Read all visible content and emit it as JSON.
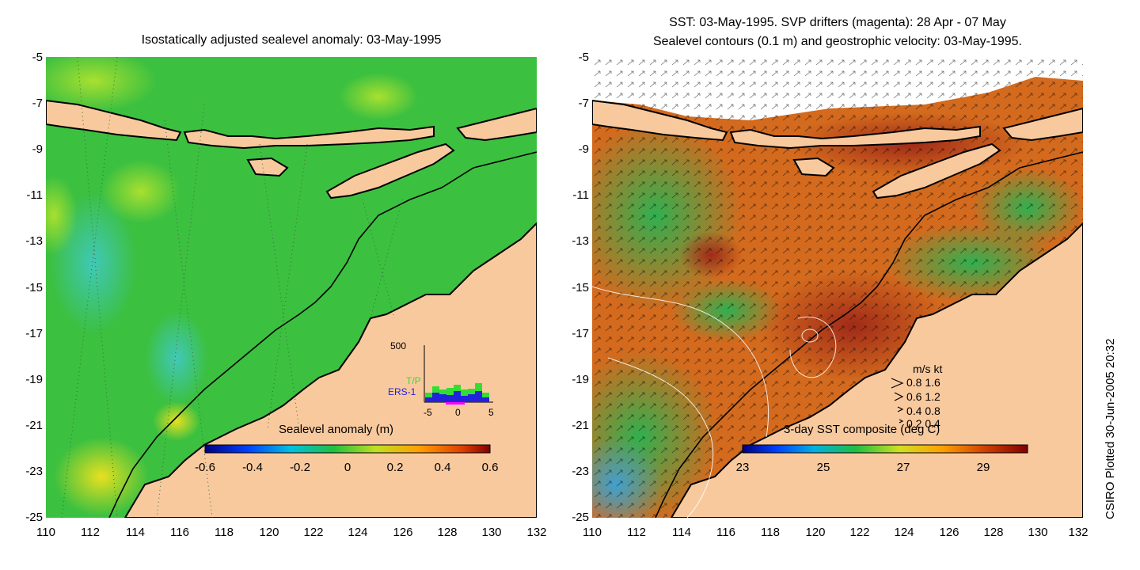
{
  "left_panel": {
    "title": "Isostatically adjusted sealevel anomaly: 03-May-1995",
    "y_ticks": [
      "-5",
      "-7",
      "-9",
      "-11",
      "-13",
      "-15",
      "-17",
      "-19",
      "-21",
      "-23",
      "-25"
    ],
    "x_ticks": [
      "110",
      "112",
      "114",
      "116",
      "118",
      "120",
      "122",
      "124",
      "126",
      "128",
      "130",
      "132"
    ],
    "colorbar": {
      "label": "Sealevel anomaly (m)",
      "ticks": [
        "-0.6",
        "-0.4",
        "-0.2",
        "0",
        "0.2",
        "0.4",
        "0.6"
      ]
    },
    "histogram": {
      "top_label": "500",
      "series": [
        {
          "name": "T/P",
          "color": "#33dd33"
        },
        {
          "name": "ERS-1",
          "color": "#2222dd"
        }
      ],
      "x_ticks": [
        "-5",
        "0",
        "5"
      ]
    }
  },
  "right_panel": {
    "title_line1": "SST: 03-May-1995. SVP drifters (magenta): 28 Apr - 07 May",
    "title_line2": "Sealevel contours (0.1 m) and geostrophic velocity: 03-May-1995.",
    "y_ticks": [
      "-5",
      "-7",
      "-9",
      "-11",
      "-13",
      "-15",
      "-17",
      "-19",
      "-21",
      "-23",
      "-25"
    ],
    "x_ticks": [
      "110",
      "112",
      "114",
      "116",
      "118",
      "120",
      "122",
      "124",
      "126",
      "128",
      "130",
      "132"
    ],
    "colorbar": {
      "label": "3-day SST composite (deg C)",
      "ticks": [
        "23",
        "25",
        "27",
        "29"
      ]
    },
    "velocity_legend": {
      "header": "m/s  kt",
      "rows": [
        "0.8  1.6",
        "0.6  1.2",
        "0.4  0.8",
        "0.2  0.4"
      ]
    }
  },
  "credit": "CSIRO Plotted 30-Jun-2005 20:32",
  "colors": {
    "land": "#f9c99e",
    "ocean_green": "#3ec43e",
    "sst_orange": "#d2691e",
    "sst_dark": "#a0301a"
  }
}
